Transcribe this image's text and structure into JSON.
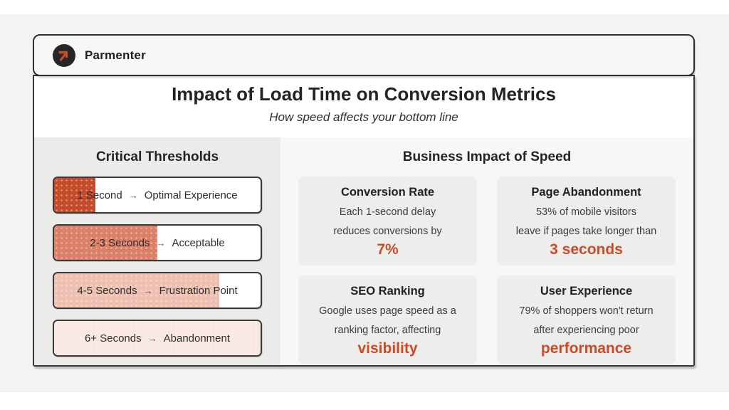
{
  "brand": {
    "name": "Parmenter"
  },
  "header": {
    "title": "Impact of Load Time on Conversion Metrics",
    "subtitle": "How speed affects your bottom line"
  },
  "thresholds": {
    "heading": "Critical Thresholds",
    "items": [
      {
        "time": "1 Second",
        "arrow": "→",
        "label": "Optimal Experience",
        "fill_pct": 20,
        "fill_color": "#c44b2a"
      },
      {
        "time": "2-3 Seconds",
        "arrow": "→",
        "label": "Acceptable",
        "fill_pct": 50,
        "fill_color": "#dc8068"
      },
      {
        "time": "4-5 Seconds",
        "arrow": "→",
        "label": "Frustration Point",
        "fill_pct": 80,
        "fill_color": "#eec0b1"
      },
      {
        "time": "6+ Seconds",
        "arrow": "→",
        "label": "Abandonment",
        "fill_pct": 100,
        "fill_color": "#fae8e2"
      }
    ]
  },
  "impact": {
    "heading": "Business Impact of Speed",
    "cards": [
      {
        "title": "Conversion Rate",
        "line1": "Each 1-second delay",
        "line2": "reduces conversions by",
        "highlight": "7%"
      },
      {
        "title": "Page Abandonment",
        "line1": "53% of mobile visitors",
        "line2": "leave if pages take longer than",
        "highlight": "3 seconds"
      },
      {
        "title": "SEO Ranking",
        "line1": "Google uses page speed as a",
        "line2": "ranking factor, affecting",
        "highlight": "visibility"
      },
      {
        "title": "User Experience",
        "line1": "79% of shoppers won't return",
        "line2": "after experiencing poor",
        "highlight": "performance"
      }
    ]
  },
  "colors": {
    "accent": "#cb4b28",
    "logo_glyph": "#cf4c28",
    "left_panel_bg": "#ebebea",
    "right_panel_bg": "#f7f7f6",
    "card_bg": "#ededec"
  }
}
